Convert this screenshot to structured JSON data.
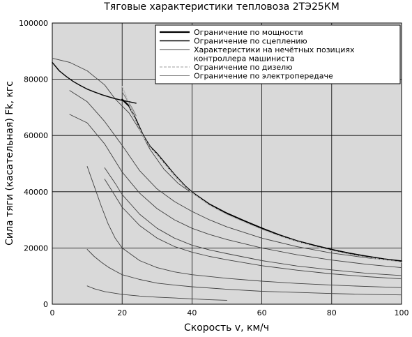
{
  "chart_data": {
    "type": "line",
    "title": "Тяговые характеристики тепловоза 2ТЭ25КМ",
    "xlabel": "Скорость v, км/ч",
    "ylabel": "Сила тяги (касательная) Fk, кгс",
    "xlim": [
      0,
      100
    ],
    "ylim": [
      0,
      100000
    ],
    "x_ticks": [
      "0",
      "20",
      "40",
      "60",
      "80",
      "100"
    ],
    "y_ticks": [
      "0",
      "20000",
      "40000",
      "60000",
      "80000",
      "100000"
    ],
    "grid": true,
    "legend_position": "top-right",
    "colors": {
      "plot_background": "#d9d9d9",
      "power_limit": "#000000",
      "adhesion_limit": "#000000",
      "position_curves": "#404040",
      "diesel_limit": "#bdbdbd",
      "transmission_limit": "#777777"
    },
    "legend": [
      {
        "key": "power",
        "text": "Ограничение по мощности"
      },
      {
        "key": "adhesion",
        "text": "Ограничение по сцеплению"
      },
      {
        "key": "positions",
        "text": "Характеристики на нечётных позициях"
      },
      {
        "key": "positions_cont",
        "text": "контроллера машиниста"
      },
      {
        "key": "diesel",
        "text": "Ограничение по дизелю"
      },
      {
        "key": "transmission",
        "text": "Ограничение по электропередаче"
      }
    ],
    "series": [
      {
        "name": "Ограничение по мощности",
        "key": "power",
        "points": [
          [
            20,
            72800
          ],
          [
            22,
            70500
          ],
          [
            24,
            65500
          ],
          [
            26,
            60000
          ],
          [
            28,
            56000
          ],
          [
            30,
            53500
          ],
          [
            32,
            50500
          ],
          [
            35,
            46000
          ],
          [
            38,
            42000
          ],
          [
            40,
            39800
          ],
          [
            45,
            35500
          ],
          [
            50,
            32300
          ],
          [
            55,
            29600
          ],
          [
            60,
            27000
          ],
          [
            65,
            24600
          ],
          [
            70,
            22500
          ],
          [
            75,
            20900
          ],
          [
            80,
            19400
          ],
          [
            85,
            18100
          ],
          [
            90,
            17000
          ],
          [
            95,
            16000
          ],
          [
            100,
            15300
          ]
        ]
      },
      {
        "name": "Ограничение по сцеплению",
        "key": "adhesion",
        "points": [
          [
            0,
            86000
          ],
          [
            2,
            83000
          ],
          [
            4,
            81000
          ],
          [
            6,
            79200
          ],
          [
            8,
            77800
          ],
          [
            10,
            76500
          ],
          [
            12,
            75500
          ],
          [
            14,
            74600
          ],
          [
            16,
            73800
          ],
          [
            18,
            73100
          ],
          [
            20,
            72500
          ],
          [
            22,
            72000
          ],
          [
            24,
            71500
          ]
        ]
      },
      {
        "name": "Ограничение по дизелю",
        "key": "diesel",
        "points": [
          [
            20,
            77500
          ],
          [
            21,
            74500
          ],
          [
            22,
            71000
          ],
          [
            23,
            68000
          ],
          [
            24,
            65000
          ],
          [
            26,
            59800
          ],
          [
            28,
            55800
          ],
          [
            30,
            53200
          ],
          [
            32,
            50200
          ],
          [
            35,
            45800
          ],
          [
            38,
            41800
          ],
          [
            40,
            39600
          ],
          [
            45,
            35200
          ],
          [
            50,
            31900
          ],
          [
            55,
            29200
          ],
          [
            60,
            26600
          ],
          [
            65,
            24300
          ],
          [
            70,
            22300
          ],
          [
            75,
            20600
          ],
          [
            80,
            19100
          ],
          [
            85,
            17800
          ],
          [
            90,
            16700
          ],
          [
            95,
            15800
          ],
          [
            100,
            15000
          ]
        ]
      },
      {
        "name": "Ограничение по электропередаче",
        "key": "transmission",
        "points": [
          [
            20,
            75500
          ],
          [
            21,
            73500
          ],
          [
            22,
            71500
          ],
          [
            23,
            69500
          ],
          [
            24,
            67000
          ]
        ]
      },
      {
        "key": "positions",
        "points": [
          [
            0,
            87500
          ],
          [
            5,
            86000
          ],
          [
            10,
            83000
          ],
          [
            15,
            78000
          ],
          [
            18,
            73000
          ],
          [
            20,
            70500
          ],
          [
            22,
            68000
          ],
          [
            25,
            62000
          ],
          [
            28,
            55000
          ],
          [
            32,
            48000
          ],
          [
            36,
            43000
          ],
          [
            40,
            39500
          ]
        ]
      },
      {
        "key": "positions",
        "points": [
          [
            5,
            76000
          ],
          [
            10,
            72000
          ],
          [
            15,
            65000
          ],
          [
            20,
            56500
          ],
          [
            25,
            47500
          ],
          [
            30,
            41000
          ],
          [
            35,
            36500
          ],
          [
            40,
            33000
          ],
          [
            45,
            30000
          ],
          [
            50,
            27500
          ],
          [
            60,
            23500
          ],
          [
            70,
            20500
          ],
          [
            80,
            18200
          ],
          [
            90,
            16500
          ],
          [
            100,
            15200
          ]
        ]
      },
      {
        "key": "positions",
        "points": [
          [
            5,
            67500
          ],
          [
            10,
            64500
          ],
          [
            15,
            57000
          ],
          [
            20,
            47000
          ],
          [
            25,
            39500
          ],
          [
            30,
            34000
          ],
          [
            35,
            30000
          ],
          [
            40,
            27000
          ],
          [
            45,
            24800
          ],
          [
            50,
            23000
          ],
          [
            60,
            20000
          ],
          [
            70,
            17600
          ],
          [
            80,
            15700
          ],
          [
            90,
            14200
          ],
          [
            100,
            13000
          ]
        ]
      },
      {
        "key": "positions",
        "points": [
          [
            15,
            48500
          ],
          [
            18,
            43000
          ],
          [
            20,
            39000
          ],
          [
            25,
            32000
          ],
          [
            30,
            27000
          ],
          [
            35,
            23500
          ],
          [
            40,
            21000
          ],
          [
            45,
            19300
          ],
          [
            50,
            18000
          ],
          [
            60,
            15500
          ],
          [
            70,
            13600
          ],
          [
            80,
            12200
          ],
          [
            90,
            11000
          ],
          [
            100,
            10200
          ]
        ]
      },
      {
        "key": "positions",
        "points": [
          [
            15,
            44500
          ],
          [
            18,
            38500
          ],
          [
            20,
            34500
          ],
          [
            25,
            28000
          ],
          [
            30,
            23500
          ],
          [
            35,
            20500
          ],
          [
            40,
            18500
          ],
          [
            45,
            17000
          ],
          [
            50,
            15800
          ],
          [
            60,
            13700
          ],
          [
            70,
            12100
          ],
          [
            80,
            10800
          ],
          [
            90,
            9800
          ],
          [
            100,
            9000
          ]
        ]
      },
      {
        "key": "positions",
        "points": [
          [
            10,
            49000
          ],
          [
            12,
            42000
          ],
          [
            14,
            35000
          ],
          [
            16,
            28500
          ],
          [
            18,
            23500
          ],
          [
            20,
            20000
          ],
          [
            25,
            15500
          ],
          [
            30,
            13000
          ],
          [
            35,
            11500
          ],
          [
            40,
            10500
          ],
          [
            50,
            9200
          ],
          [
            60,
            8200
          ],
          [
            70,
            7400
          ],
          [
            80,
            6800
          ],
          [
            90,
            6300
          ],
          [
            100,
            5900
          ]
        ]
      },
      {
        "key": "positions",
        "points": [
          [
            10,
            19500
          ],
          [
            12,
            17000
          ],
          [
            14,
            15000
          ],
          [
            16,
            13200
          ],
          [
            18,
            11800
          ],
          [
            20,
            10500
          ],
          [
            25,
            8800
          ],
          [
            30,
            7500
          ],
          [
            35,
            6800
          ],
          [
            40,
            6200
          ],
          [
            50,
            5300
          ],
          [
            60,
            4600
          ],
          [
            70,
            4200
          ],
          [
            80,
            3800
          ],
          [
            90,
            3500
          ],
          [
            100,
            3300
          ]
        ]
      },
      {
        "key": "positions",
        "points": [
          [
            10,
            6500
          ],
          [
            12,
            5500
          ],
          [
            15,
            4500
          ],
          [
            20,
            3500
          ],
          [
            25,
            2900
          ],
          [
            30,
            2500
          ],
          [
            35,
            2200
          ],
          [
            40,
            1900
          ],
          [
            45,
            1600
          ],
          [
            50,
            1400
          ]
        ]
      }
    ]
  }
}
